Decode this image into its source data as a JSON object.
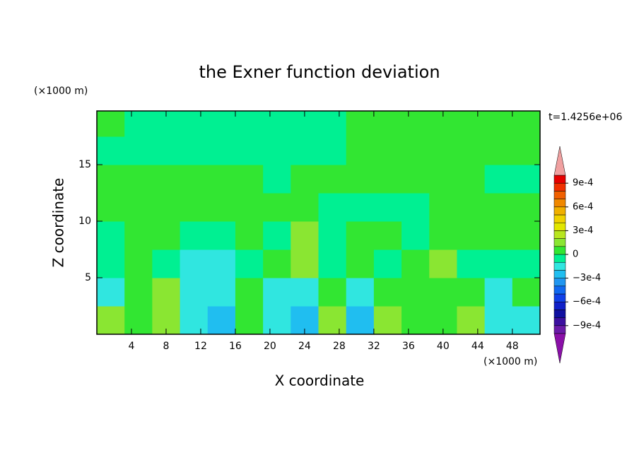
{
  "chart_data": {
    "type": "contourf",
    "title": "the Exner function deviation",
    "xlabel": "X coordinate",
    "ylabel": "Z coordinate",
    "xunit": "(×1000 m)",
    "yunit": "(×1000 m)",
    "annotation": "t=1.4256e+06",
    "xlim": [
      0,
      51.2
    ],
    "ylim": [
      0,
      19.75
    ],
    "xticks": [
      4,
      8,
      12,
      16,
      20,
      24,
      28,
      32,
      36,
      40,
      44,
      48
    ],
    "yticks": [
      5,
      10,
      15
    ],
    "x": [
      1.6,
      4.8,
      8,
      11.2,
      14.4,
      17.6,
      20.8,
      24,
      27.2,
      30.4,
      33.6,
      36.8,
      40,
      43.2,
      46.4,
      49.6
    ],
    "y": [
      1.25,
      3.75,
      6.25,
      8.75,
      11.25,
      13.75,
      16.25,
      18.75
    ],
    "z": [
      [
        0.00015,
        5e-05,
        0.00015,
        -0.00015,
        -0.00025,
        5e-05,
        -0.00015,
        -0.00025,
        0.00015,
        -0.00025,
        0.00015,
        5e-05,
        5e-05,
        0.00015,
        -0.00015,
        -0.00015
      ],
      [
        -0.00015,
        5e-05,
        0.00015,
        -0.00015,
        -0.00015,
        5e-05,
        -0.00015,
        -0.00015,
        5e-05,
        -0.00015,
        5e-05,
        5e-05,
        5e-05,
        5e-05,
        -0.00015,
        5e-05
      ],
      [
        -5e-05,
        5e-05,
        -5e-05,
        -0.00015,
        -0.00015,
        -5e-05,
        5e-05,
        0.00015,
        -5e-05,
        5e-05,
        -5e-05,
        5e-05,
        0.00015,
        -5e-05,
        -5e-05,
        -5e-05
      ],
      [
        -5e-05,
        5e-05,
        5e-05,
        -5e-05,
        -5e-05,
        5e-05,
        -5e-05,
        0.00015,
        -5e-05,
        5e-05,
        5e-05,
        -5e-05,
        5e-05,
        5e-05,
        5e-05,
        5e-05
      ],
      [
        5e-05,
        5e-05,
        5e-05,
        5e-05,
        5e-05,
        5e-05,
        5e-05,
        5e-05,
        -5e-05,
        -5e-05,
        -5e-05,
        -5e-05,
        5e-05,
        5e-05,
        5e-05,
        5e-05
      ],
      [
        5e-05,
        5e-05,
        5e-05,
        5e-05,
        5e-05,
        5e-05,
        -5e-05,
        5e-05,
        5e-05,
        5e-05,
        5e-05,
        5e-05,
        5e-05,
        5e-05,
        -5e-05,
        -5e-05
      ],
      [
        -5e-05,
        -5e-05,
        -5e-05,
        -5e-05,
        -5e-05,
        -5e-05,
        -5e-05,
        -5e-05,
        -5e-05,
        5e-05,
        5e-05,
        5e-05,
        5e-05,
        5e-05,
        5e-05,
        5e-05
      ],
      [
        5e-05,
        -5e-05,
        -5e-05,
        -5e-05,
        -5e-05,
        -5e-05,
        -5e-05,
        -5e-05,
        -5e-05,
        5e-05,
        5e-05,
        5e-05,
        5e-05,
        5e-05,
        5e-05,
        5e-05
      ]
    ],
    "colorbar": {
      "levels": [
        -0.001,
        -0.0009,
        -0.0008,
        -0.0007,
        -0.0006,
        -0.0005,
        -0.0004,
        -0.0003,
        -0.0002,
        -0.0001,
        0,
        0.0001,
        0.0002,
        0.0003,
        0.0004,
        0.0005,
        0.0006,
        0.0007,
        0.0008,
        0.0009,
        0.001
      ],
      "colors": [
        "#6a1aa8",
        "#3c10a0",
        "#1010a0",
        "#1020c8",
        "#1040e8",
        "#1068f0",
        "#2096f0",
        "#20bef0",
        "#30e6e0",
        "#00f092",
        "#32e632",
        "#8ae632",
        "#b8e620",
        "#e2e600",
        "#f0d200",
        "#f0b000",
        "#f08800",
        "#f06000",
        "#f03000",
        "#e60000"
      ],
      "under_color": "#8a10a8",
      "over_color": "#f0a0a0",
      "ticks": [
        {
          "value": 0.0009,
          "label": "9e-4"
        },
        {
          "value": 0.0006,
          "label": "6e-4"
        },
        {
          "value": 0.0003,
          "label": "3e-4"
        },
        0,
        {
          "value": -0.0003,
          "label": "−3e-4"
        },
        {
          "value": -0.0006,
          "label": "−6e-4"
        },
        {
          "value": -0.0009,
          "label": "−9e-4"
        }
      ]
    }
  }
}
